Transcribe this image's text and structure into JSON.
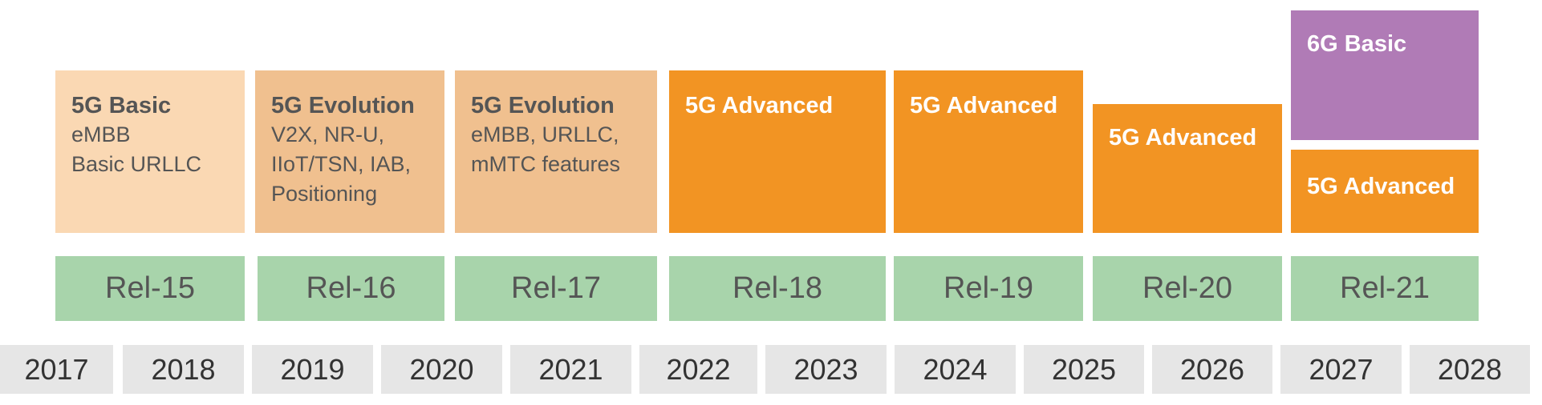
{
  "features": [
    {
      "title": "5G Basic",
      "lines": [
        "eMBB",
        "Basic URLLC"
      ]
    },
    {
      "title": "5G Evolution",
      "lines": [
        "V2X, NR-U,",
        "IIoT/TSN, IAB,",
        "Positioning"
      ]
    },
    {
      "title": "5G Evolution",
      "lines": [
        "eMBB, URLLC,",
        "mMTC features"
      ]
    },
    {
      "title": "5G Advanced",
      "lines": []
    },
    {
      "title": "5G Advanced",
      "lines": []
    },
    {
      "title": "5G Advanced",
      "lines": []
    },
    {
      "title": "6G Basic",
      "lines": []
    },
    {
      "title": "5G Advanced",
      "lines": []
    }
  ],
  "releases": [
    "Rel-15",
    "Rel-16",
    "Rel-17",
    "Rel-18",
    "Rel-19",
    "Rel-20",
    "Rel-21"
  ],
  "years": [
    "2017",
    "2018",
    "2019",
    "2020",
    "2021",
    "2022",
    "2023",
    "2024",
    "2025",
    "2026",
    "2027",
    "2028"
  ],
  "colors": {
    "basic": "#fad8b3",
    "evolution": "#f0c08f",
    "advanced": "#f29423",
    "six_g": "#b07bb6",
    "release": "#a8d4ab",
    "year": "#e6e6e6"
  }
}
